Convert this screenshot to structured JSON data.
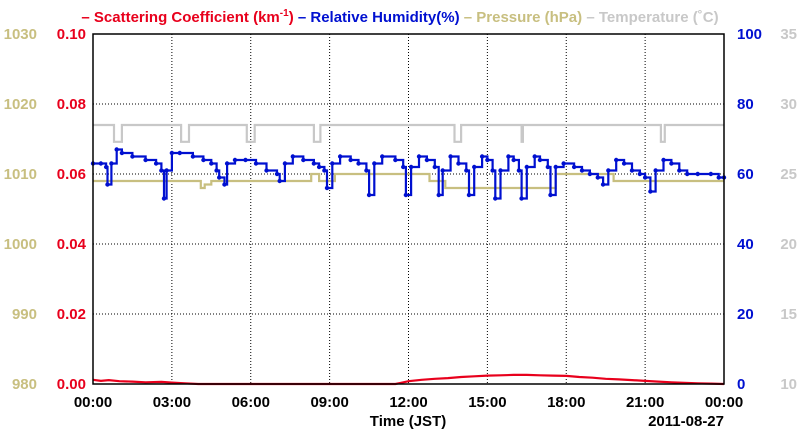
{
  "chart_data": {
    "type": "line",
    "title": "",
    "xlabel": "Time (JST)",
    "date_label": "2011-08-27",
    "x_ticks": [
      "00:00",
      "03:00",
      "06:00",
      "09:00",
      "12:00",
      "15:00",
      "18:00",
      "21:00",
      "00:00"
    ],
    "x_range_hours": [
      0,
      24
    ],
    "grid": true,
    "legend": [
      {
        "label": "Scattering Coefficient (km",
        "sup": "-1",
        "suffix": ")",
        "color": "#e8001c"
      },
      {
        "label": "Relative Humidity(%)",
        "color": "#0010d0"
      },
      {
        "label": "Pressure (hPa)",
        "color": "#c8bf80"
      },
      {
        "label": "Temperature (˚C)",
        "color": "#c8c8c8"
      }
    ],
    "axes": {
      "pressure": {
        "ticks": [
          "1030",
          "1020",
          "1010",
          "1000",
          "990",
          "980"
        ],
        "range": [
          980,
          1030
        ],
        "color": "#c8bf80"
      },
      "scattering": {
        "ticks": [
          "0.10",
          "0.08",
          "0.06",
          "0.04",
          "0.02",
          "0.00"
        ],
        "range": [
          0,
          0.1
        ],
        "color": "#e8001c"
      },
      "humidity": {
        "ticks": [
          "100",
          "80",
          "60",
          "40",
          "20",
          "0"
        ],
        "range": [
          0,
          100
        ],
        "color": "#0010d0"
      },
      "temperature": {
        "ticks": [
          "35",
          "30",
          "25",
          "20",
          "15",
          "10"
        ],
        "range": [
          10,
          35
        ],
        "color": "#c8c8c8"
      }
    },
    "series": [
      {
        "name": "Relative Humidity(%)",
        "axis": "humidity",
        "color": "#0010d0",
        "step": true,
        "markers": true,
        "points": [
          [
            0,
            63
          ],
          [
            0.3,
            63
          ],
          [
            0.5,
            62
          ],
          [
            0.55,
            57
          ],
          [
            0.7,
            63
          ],
          [
            0.9,
            67
          ],
          [
            1.1,
            66
          ],
          [
            1.5,
            65
          ],
          [
            2,
            64
          ],
          [
            2.4,
            63
          ],
          [
            2.6,
            61
          ],
          [
            2.7,
            53
          ],
          [
            2.8,
            61
          ],
          [
            3,
            66
          ],
          [
            3.3,
            66
          ],
          [
            3.8,
            65
          ],
          [
            4.2,
            64
          ],
          [
            4.5,
            63
          ],
          [
            4.7,
            61
          ],
          [
            4.8,
            59
          ],
          [
            5,
            57
          ],
          [
            5.1,
            63
          ],
          [
            5.4,
            64
          ],
          [
            5.8,
            64
          ],
          [
            6.2,
            63
          ],
          [
            6.6,
            61
          ],
          [
            7,
            60
          ],
          [
            7.1,
            58
          ],
          [
            7.3,
            63
          ],
          [
            7.6,
            65
          ],
          [
            8,
            64
          ],
          [
            8.4,
            63
          ],
          [
            8.6,
            62
          ],
          [
            8.8,
            61
          ],
          [
            8.9,
            56
          ],
          [
            9.1,
            63
          ],
          [
            9.4,
            65
          ],
          [
            9.8,
            64
          ],
          [
            10.1,
            63
          ],
          [
            10.4,
            61
          ],
          [
            10.5,
            54
          ],
          [
            10.7,
            63
          ],
          [
            11,
            65
          ],
          [
            11.5,
            64
          ],
          [
            11.8,
            62
          ],
          [
            11.9,
            54
          ],
          [
            12.1,
            62
          ],
          [
            12.4,
            65
          ],
          [
            12.7,
            64
          ],
          [
            13,
            62
          ],
          [
            13.15,
            54
          ],
          [
            13.3,
            61
          ],
          [
            13.6,
            65
          ],
          [
            13.9,
            63
          ],
          [
            14.2,
            61
          ],
          [
            14.3,
            54
          ],
          [
            14.5,
            62
          ],
          [
            14.8,
            65
          ],
          [
            15,
            64
          ],
          [
            15.2,
            61
          ],
          [
            15.3,
            53
          ],
          [
            15.5,
            61
          ],
          [
            15.8,
            65
          ],
          [
            16,
            64
          ],
          [
            16.2,
            61
          ],
          [
            16.3,
            53
          ],
          [
            16.5,
            62
          ],
          [
            16.8,
            65
          ],
          [
            17,
            64
          ],
          [
            17.3,
            62
          ],
          [
            17.4,
            54
          ],
          [
            17.6,
            62
          ],
          [
            17.9,
            63
          ],
          [
            18.3,
            62
          ],
          [
            18.6,
            61
          ],
          [
            18.9,
            60
          ],
          [
            19.2,
            59
          ],
          [
            19.4,
            57
          ],
          [
            19.6,
            61
          ],
          [
            19.9,
            64
          ],
          [
            20.2,
            63
          ],
          [
            20.5,
            61
          ],
          [
            20.8,
            60
          ],
          [
            21,
            59
          ],
          [
            21.2,
            55
          ],
          [
            21.4,
            61
          ],
          [
            21.7,
            64
          ],
          [
            22,
            63
          ],
          [
            22.3,
            61
          ],
          [
            22.6,
            60
          ],
          [
            23,
            60
          ],
          [
            23.5,
            60
          ],
          [
            23.8,
            59
          ],
          [
            24,
            59
          ]
        ]
      },
      {
        "name": "Pressure (hPa)",
        "axis": "pressure",
        "color": "#c8bf80",
        "step": true,
        "markers": false,
        "points": [
          [
            0,
            1009
          ],
          [
            4,
            1009
          ],
          [
            4.1,
            1008
          ],
          [
            4.25,
            1008.5
          ],
          [
            4.5,
            1009
          ],
          [
            8,
            1009
          ],
          [
            8.3,
            1010
          ],
          [
            8.6,
            1009
          ],
          [
            8.8,
            1009
          ],
          [
            9.2,
            1010
          ],
          [
            12.5,
            1010
          ],
          [
            12.8,
            1009
          ],
          [
            13.1,
            1009
          ],
          [
            13.4,
            1008
          ],
          [
            14,
            1008
          ],
          [
            17.3,
            1008
          ],
          [
            17.6,
            1010
          ],
          [
            19.5,
            1010
          ],
          [
            19.8,
            1009
          ],
          [
            24,
            1009
          ]
        ]
      },
      {
        "name": "Temperature (˚C)",
        "axis": "temperature",
        "color": "#c8c8c8",
        "step": true,
        "markers": false,
        "points": [
          [
            0,
            28.5
          ],
          [
            0.75,
            28.5
          ],
          [
            0.8,
            27.3
          ],
          [
            1.05,
            27.3
          ],
          [
            1.1,
            28.5
          ],
          [
            3.3,
            28.5
          ],
          [
            3.35,
            27.3
          ],
          [
            3.6,
            27.3
          ],
          [
            3.65,
            28.5
          ],
          [
            5.8,
            28.5
          ],
          [
            5.85,
            27.3
          ],
          [
            6.1,
            27.3
          ],
          [
            6.15,
            28.5
          ],
          [
            8.35,
            28.5
          ],
          [
            8.4,
            27.3
          ],
          [
            8.6,
            27.3
          ],
          [
            8.65,
            28.5
          ],
          [
            13.7,
            28.5
          ],
          [
            13.75,
            27.3
          ],
          [
            13.95,
            27.3
          ],
          [
            14,
            28.5
          ],
          [
            16.25,
            28.5
          ],
          [
            16.3,
            27.3
          ],
          [
            16.35,
            28.5
          ],
          [
            21.55,
            28.5
          ],
          [
            21.6,
            27.3
          ],
          [
            21.7,
            27.3
          ],
          [
            21.75,
            28.5
          ],
          [
            24,
            28.5
          ]
        ]
      },
      {
        "name": "Scattering Coefficient (km-1)",
        "axis": "scattering",
        "color": "#e8001c",
        "step": false,
        "markers": false,
        "points": [
          [
            0,
            0.0012
          ],
          [
            0.3,
            0.0009
          ],
          [
            0.6,
            0.0011
          ],
          [
            1,
            0.0008
          ],
          [
            1.5,
            0.0007
          ],
          [
            2,
            0.0005
          ],
          [
            2.6,
            0.0006
          ],
          [
            3,
            0.0004
          ],
          [
            3.5,
            0.0002
          ],
          [
            4,
            0
          ],
          [
            6,
            0
          ],
          [
            9,
            0
          ],
          [
            11.5,
            0
          ],
          [
            11.7,
            0.0003
          ],
          [
            12,
            0.0008
          ],
          [
            12.5,
            0.0012
          ],
          [
            13,
            0.0015
          ],
          [
            13.5,
            0.0017
          ],
          [
            14,
            0.002
          ],
          [
            14.5,
            0.0022
          ],
          [
            15,
            0.0024
          ],
          [
            15.5,
            0.0025
          ],
          [
            16,
            0.0026
          ],
          [
            16.5,
            0.0026
          ],
          [
            17,
            0.0025
          ],
          [
            17.5,
            0.0024
          ],
          [
            18,
            0.0023
          ],
          [
            18.5,
            0.002
          ],
          [
            19,
            0.0018
          ],
          [
            19.5,
            0.0015
          ],
          [
            20,
            0.0013
          ],
          [
            20.5,
            0.0011
          ],
          [
            21,
            0.0009
          ],
          [
            21.5,
            0.0007
          ],
          [
            22,
            0.0005
          ],
          [
            22.5,
            0.0003
          ],
          [
            23,
            0.0002
          ],
          [
            23.5,
            0.0001
          ],
          [
            24,
            0
          ]
        ]
      }
    ]
  }
}
